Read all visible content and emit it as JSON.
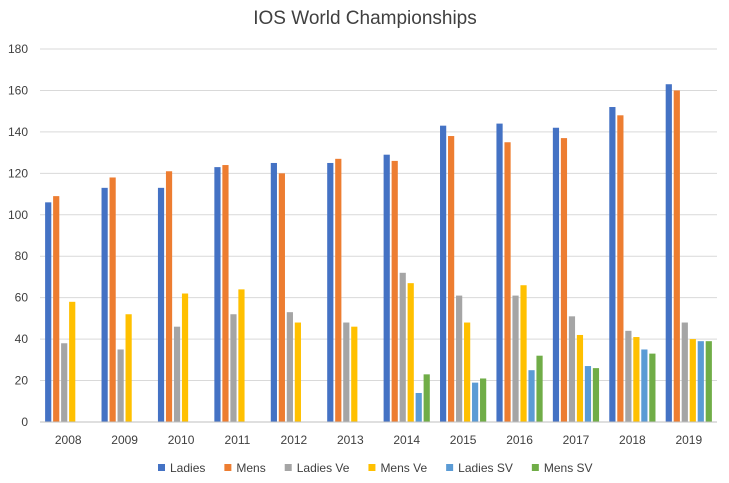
{
  "chart_data": {
    "type": "bar",
    "title": "IOS World Championships",
    "xlabel": "",
    "ylabel": "",
    "ylim": [
      0,
      180
    ],
    "yticks": [
      0,
      20,
      40,
      60,
      80,
      100,
      120,
      140,
      160,
      180
    ],
    "grid": true,
    "legend_position": "bottom",
    "categories": [
      "2008",
      "2009",
      "2010",
      "2011",
      "2012",
      "2013",
      "2014",
      "2015",
      "2016",
      "2017",
      "2018",
      "2019"
    ],
    "series": [
      {
        "name": "Ladies",
        "color": "#4472C4",
        "values": [
          106,
          113,
          113,
          123,
          125,
          125,
          129,
          143,
          144,
          142,
          152,
          163
        ]
      },
      {
        "name": "Mens",
        "color": "#ED7D31",
        "values": [
          109,
          118,
          121,
          124,
          120,
          127,
          126,
          138,
          135,
          137,
          148,
          160
        ]
      },
      {
        "name": "Ladies Ve",
        "color": "#A5A5A5",
        "values": [
          38,
          35,
          46,
          52,
          53,
          48,
          72,
          61,
          61,
          51,
          44,
          48
        ]
      },
      {
        "name": "Mens Ve",
        "color": "#FFC000",
        "values": [
          58,
          52,
          62,
          64,
          48,
          46,
          67,
          48,
          66,
          42,
          41,
          40
        ]
      },
      {
        "name": "Ladies SV",
        "color": "#5B9BD5",
        "values": [
          null,
          null,
          null,
          null,
          null,
          null,
          14,
          19,
          25,
          27,
          35,
          39
        ]
      },
      {
        "name": "Mens SV",
        "color": "#70AD47",
        "values": [
          null,
          null,
          null,
          null,
          null,
          null,
          23,
          21,
          32,
          26,
          33,
          39
        ]
      }
    ]
  }
}
